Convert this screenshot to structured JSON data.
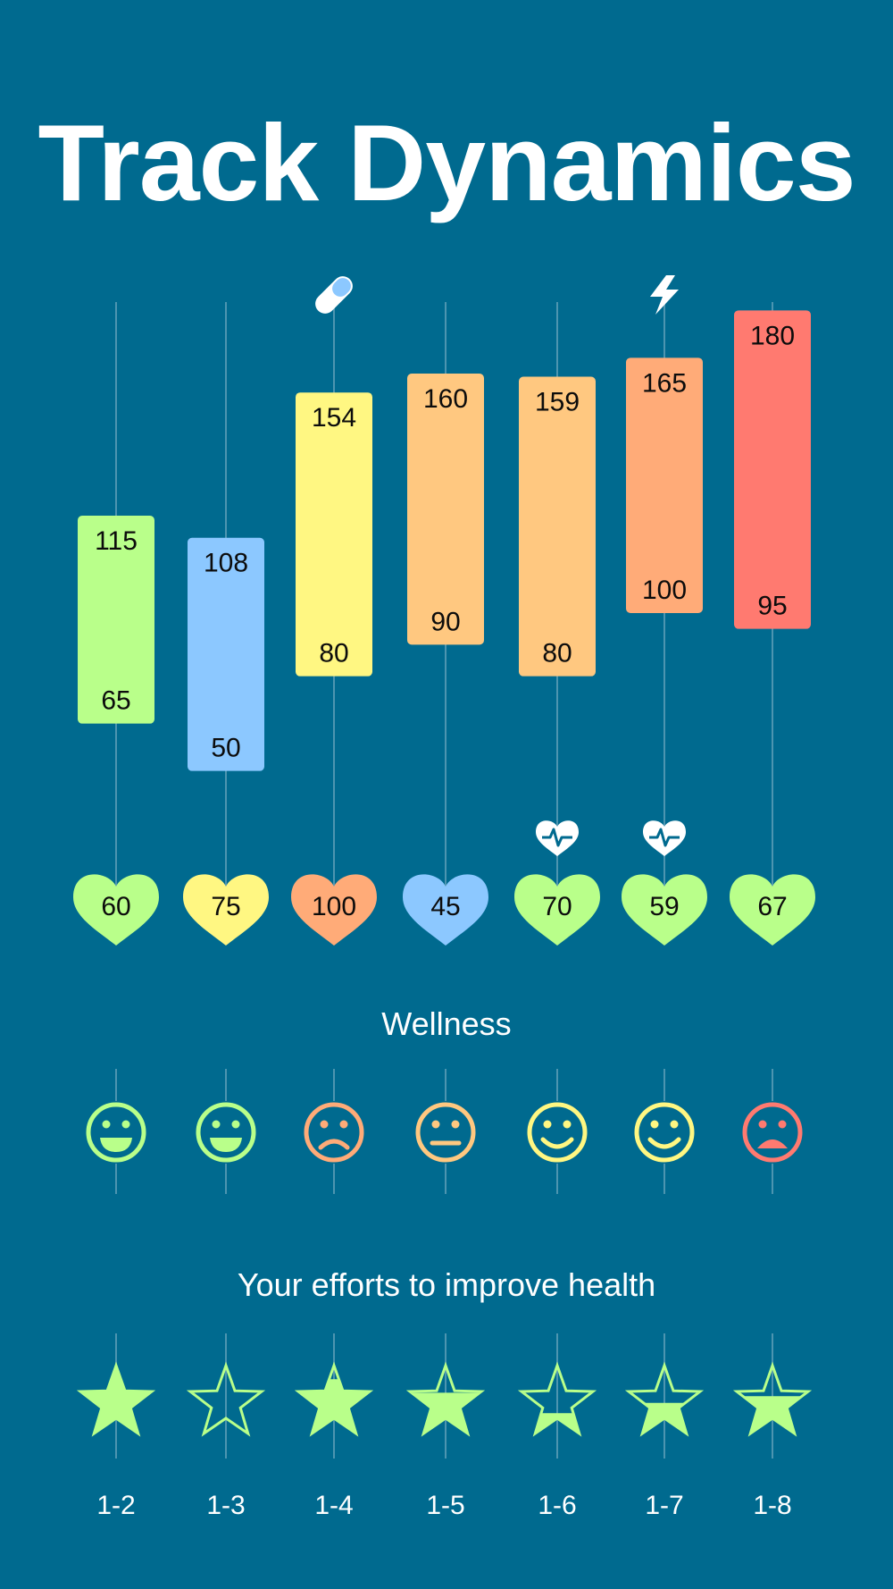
{
  "title": "Track Dynamics",
  "colors": {
    "background": "#006a8f",
    "guide_line": "#4d95b0",
    "green": "#b9ff8a",
    "blue": "#8cc8ff",
    "yellow": "#fff782",
    "light_orange": "#ffc880",
    "orange": "#ffab78",
    "red": "#ff7a70"
  },
  "chart_data": {
    "type": "bar",
    "categories": [
      "1-2",
      "1-3",
      "1-4",
      "1-5",
      "1-6",
      "1-7",
      "1-8"
    ],
    "series": [
      {
        "values": [
          [
            65,
            115
          ],
          [
            50,
            108
          ],
          [
            80,
            154
          ],
          [
            90,
            160
          ],
          [
            80,
            159
          ],
          [
            100,
            165
          ],
          [
            95,
            180
          ]
        ]
      }
    ],
    "bar_colors": [
      "green",
      "blue",
      "yellow",
      "light_orange",
      "light_orange",
      "orange",
      "red"
    ],
    "ylim": [
      40,
      190
    ],
    "top_icons": [
      null,
      null,
      "pill-icon",
      null,
      null,
      "lightning-icon",
      null
    ],
    "heart_values": [
      60,
      75,
      100,
      45,
      70,
      59,
      67
    ],
    "heart_colors": [
      "green",
      "yellow",
      "orange",
      "blue",
      "green",
      "green",
      "green"
    ],
    "heartbeat_icons": [
      false,
      false,
      false,
      false,
      true,
      true,
      false
    ],
    "wellness": {
      "title": "Wellness",
      "moods": [
        "grin",
        "grin",
        "sad",
        "neutral",
        "smile",
        "smile",
        "upset"
      ],
      "colors": [
        "green",
        "green",
        "orange",
        "light_orange",
        "yellow",
        "yellow",
        "red"
      ]
    },
    "efforts": {
      "title": "Your efforts to improve health",
      "fill_levels": [
        1.0,
        0.0,
        0.8,
        0.6,
        0.3,
        0.45,
        0.55
      ],
      "color": "green"
    }
  }
}
